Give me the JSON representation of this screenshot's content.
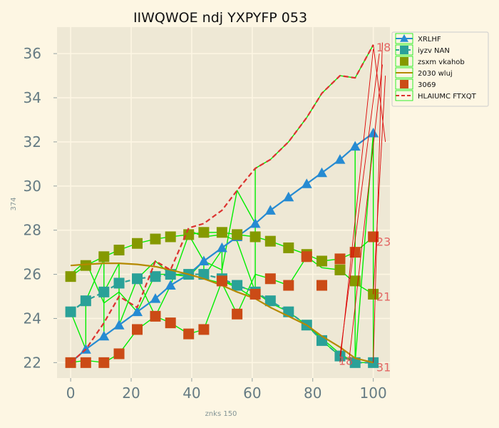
{
  "chart_data": {
    "type": "line",
    "title": "IIWQWOE ndj YXPYFP 053",
    "xlabel": "znks 150",
    "ylabel": "374",
    "xlim": [
      -4.5,
      105.5
    ],
    "ylim": [
      21.3,
      37.2
    ],
    "xticks": [
      0,
      20,
      40,
      60,
      80,
      100
    ],
    "yticks": [
      22,
      24,
      26,
      28,
      30,
      32,
      34,
      36
    ],
    "grid": true,
    "legend_position": "upper-right-outside",
    "x": [
      0,
      5,
      11,
      16,
      22,
      28,
      33,
      39,
      44,
      50,
      55,
      61,
      66,
      72,
      78,
      83,
      89,
      94,
      100
    ],
    "series": [
      {
        "name": "XRLHF",
        "color": "#268bd2",
        "marker": "triangle",
        "linestyle": "solid",
        "values": [
          22.0,
          22.6,
          23.2,
          23.7,
          24.3,
          24.9,
          25.5,
          26.0,
          26.6,
          27.2,
          27.7,
          28.3,
          28.9,
          29.5,
          30.1,
          30.6,
          31.2,
          31.8,
          32.4
        ]
      },
      {
        "name": "iyzv NAN",
        "color": "#2aa198",
        "marker": "square",
        "linestyle": "dashed",
        "values": [
          24.3,
          24.8,
          25.2,
          25.6,
          25.8,
          25.9,
          26.0,
          26.0,
          26.0,
          25.8,
          25.5,
          25.2,
          24.8,
          24.3,
          23.7,
          23.0,
          22.3,
          22.0,
          22.0
        ]
      },
      {
        "name": "zsxm vkahob",
        "color": "#859900",
        "marker": "square",
        "linestyle": "none",
        "values": [
          25.9,
          26.4,
          26.8,
          27.1,
          27.4,
          27.6,
          27.7,
          27.8,
          27.9,
          27.9,
          27.8,
          27.7,
          27.5,
          27.2,
          26.9,
          26.6,
          26.2,
          25.7,
          25.1
        ]
      },
      {
        "name": "2030 wluj",
        "color": "#b58900",
        "marker": "none",
        "linestyle": "solid",
        "values": [
          26.4,
          26.45,
          26.5,
          26.5,
          26.45,
          26.35,
          26.2,
          26.0,
          25.8,
          25.5,
          25.2,
          24.9,
          24.5,
          24.1,
          23.7,
          23.2,
          22.7,
          22.2,
          22.0
        ]
      },
      {
        "name": "3069",
        "color": "#cb4b16",
        "marker": "square",
        "linestyle": "none",
        "values": [
          22.0,
          22.0,
          22.0,
          22.4,
          23.5,
          24.1,
          23.8,
          23.3,
          23.5,
          25.7,
          24.2,
          25.1,
          25.8,
          25.5,
          26.8,
          25.5,
          26.7,
          27.0,
          27.7
        ]
      },
      {
        "name": "HLAIUMC FTXQT",
        "color": "#dc322f",
        "marker": "none",
        "linestyle": "dashed",
        "values": [
          22.0,
          22.6,
          23.8,
          25.0,
          24.5,
          26.6,
          26.2,
          28.1,
          28.3,
          28.9,
          29.8,
          30.8,
          31.2,
          32.0,
          33.1,
          34.2,
          35.0,
          34.9,
          36.4
        ]
      }
    ],
    "green_overlay": {
      "color": "#00ee00",
      "paths": [
        [
          [
            0,
            24.3
          ],
          [
            5,
            22.6
          ],
          [
            5,
            24.8
          ],
          [
            11,
            26.7
          ],
          [
            11,
            23.2
          ],
          [
            11,
            25.2
          ],
          [
            16,
            26.5
          ],
          [
            16,
            23.7
          ],
          [
            22,
            25.8
          ],
          [
            28,
            24.1
          ],
          [
            33,
            25.5
          ],
          [
            39,
            27.8
          ],
          [
            44,
            26.6
          ],
          [
            44,
            25.9
          ],
          [
            50,
            27.1
          ],
          [
            50,
            25.7
          ],
          [
            55,
            25.5
          ],
          [
            61,
            25.2
          ],
          [
            61,
            30.8
          ],
          [
            66,
            31.2
          ],
          [
            72,
            32.0
          ],
          [
            78,
            33.1
          ],
          [
            83,
            34.2
          ],
          [
            89,
            35.0
          ],
          [
            94,
            34.9
          ],
          [
            100,
            36.4
          ]
        ],
        [
          [
            0,
            25.9
          ],
          [
            5,
            26.4
          ],
          [
            11,
            26.8
          ],
          [
            16,
            27.1
          ],
          [
            22,
            27.4
          ],
          [
            28,
            27.6
          ],
          [
            33,
            27.7
          ],
          [
            39,
            27.8
          ],
          [
            44,
            27.9
          ],
          [
            50,
            27.9
          ],
          [
            55,
            27.8
          ],
          [
            61,
            27.7
          ],
          [
            66,
            27.5
          ],
          [
            72,
            27.2
          ],
          [
            78,
            26.9
          ],
          [
            83,
            26.6
          ],
          [
            89,
            26.7
          ],
          [
            94,
            27.0
          ],
          [
            100,
            27.7
          ]
        ],
        [
          [
            0,
            22.0
          ],
          [
            5,
            22.1
          ],
          [
            11,
            22.0
          ],
          [
            16,
            22.4
          ],
          [
            22,
            23.5
          ],
          [
            28,
            24.1
          ],
          [
            33,
            23.8
          ],
          [
            39,
            23.3
          ],
          [
            44,
            23.5
          ],
          [
            50,
            25.7
          ],
          [
            55,
            25.4
          ],
          [
            61,
            24.9
          ],
          [
            66,
            24.5
          ],
          [
            72,
            24.1
          ],
          [
            78,
            23.7
          ],
          [
            83,
            23.1
          ],
          [
            89,
            22.4
          ],
          [
            94,
            22.0
          ],
          [
            100,
            22.0
          ]
        ],
        [
          [
            22,
            25.8
          ],
          [
            28,
            26.6
          ],
          [
            33,
            26.0
          ],
          [
            39,
            25.9
          ],
          [
            44,
            26.6
          ],
          [
            50,
            26.2
          ],
          [
            55,
            29.8
          ],
          [
            61,
            28.3
          ],
          [
            66,
            28.9
          ],
          [
            72,
            29.5
          ],
          [
            78,
            30.1
          ],
          [
            83,
            30.6
          ],
          [
            89,
            31.2
          ],
          [
            94,
            31.8
          ],
          [
            94,
            22.0
          ],
          [
            100,
            32.4
          ],
          [
            100,
            22.0
          ]
        ],
        [
          [
            0,
            26.0
          ],
          [
            5,
            26.6
          ],
          [
            11,
            24.7
          ],
          [
            16,
            25.2
          ],
          [
            22,
            24.3
          ],
          [
            28,
            26.0
          ],
          [
            39,
            26.0
          ],
          [
            44,
            25.8
          ],
          [
            50,
            25.6
          ],
          [
            55,
            24.2
          ],
          [
            61,
            26.0
          ],
          [
            66,
            25.8
          ],
          [
            72,
            25.5
          ],
          [
            78,
            26.8
          ],
          [
            83,
            26.3
          ],
          [
            89,
            26.2
          ],
          [
            94,
            25.6
          ],
          [
            100,
            25.1
          ]
        ],
        [
          [
            39,
            28.0
          ],
          [
            44,
            27.7
          ],
          [
            50,
            27.8
          ],
          [
            55,
            27.5
          ],
          [
            61,
            25.2
          ],
          [
            66,
            24.7
          ],
          [
            72,
            24.3
          ],
          [
            78,
            23.7
          ],
          [
            83,
            23.0
          ],
          [
            89,
            22.3
          ]
        ]
      ]
    },
    "red_overlay": {
      "color": "#dc0000",
      "lines": [
        [
          [
            89,
            22.0
          ],
          [
            100,
            36.2
          ]
        ],
        [
          [
            89,
            22.3
          ],
          [
            102,
            36.0
          ]
        ],
        [
          [
            92,
            22.1
          ],
          [
            103,
            35.5
          ]
        ],
        [
          [
            100,
            22.0
          ],
          [
            103,
            36.5
          ]
        ],
        [
          [
            100,
            25.1
          ],
          [
            104,
            35.0
          ]
        ],
        [
          [
            100,
            36.4
          ],
          [
            104,
            32.0
          ]
        ]
      ]
    },
    "annotations": [
      {
        "text": "18",
        "x": 101,
        "y": 36.1
      },
      {
        "text": "23",
        "x": 101,
        "y": 27.3
      },
      {
        "text": "21",
        "x": 101,
        "y": 24.8
      },
      {
        "text": "18",
        "x": 88.5,
        "y": 21.9
      },
      {
        "text": "31",
        "x": 101,
        "y": 21.6
      }
    ]
  }
}
